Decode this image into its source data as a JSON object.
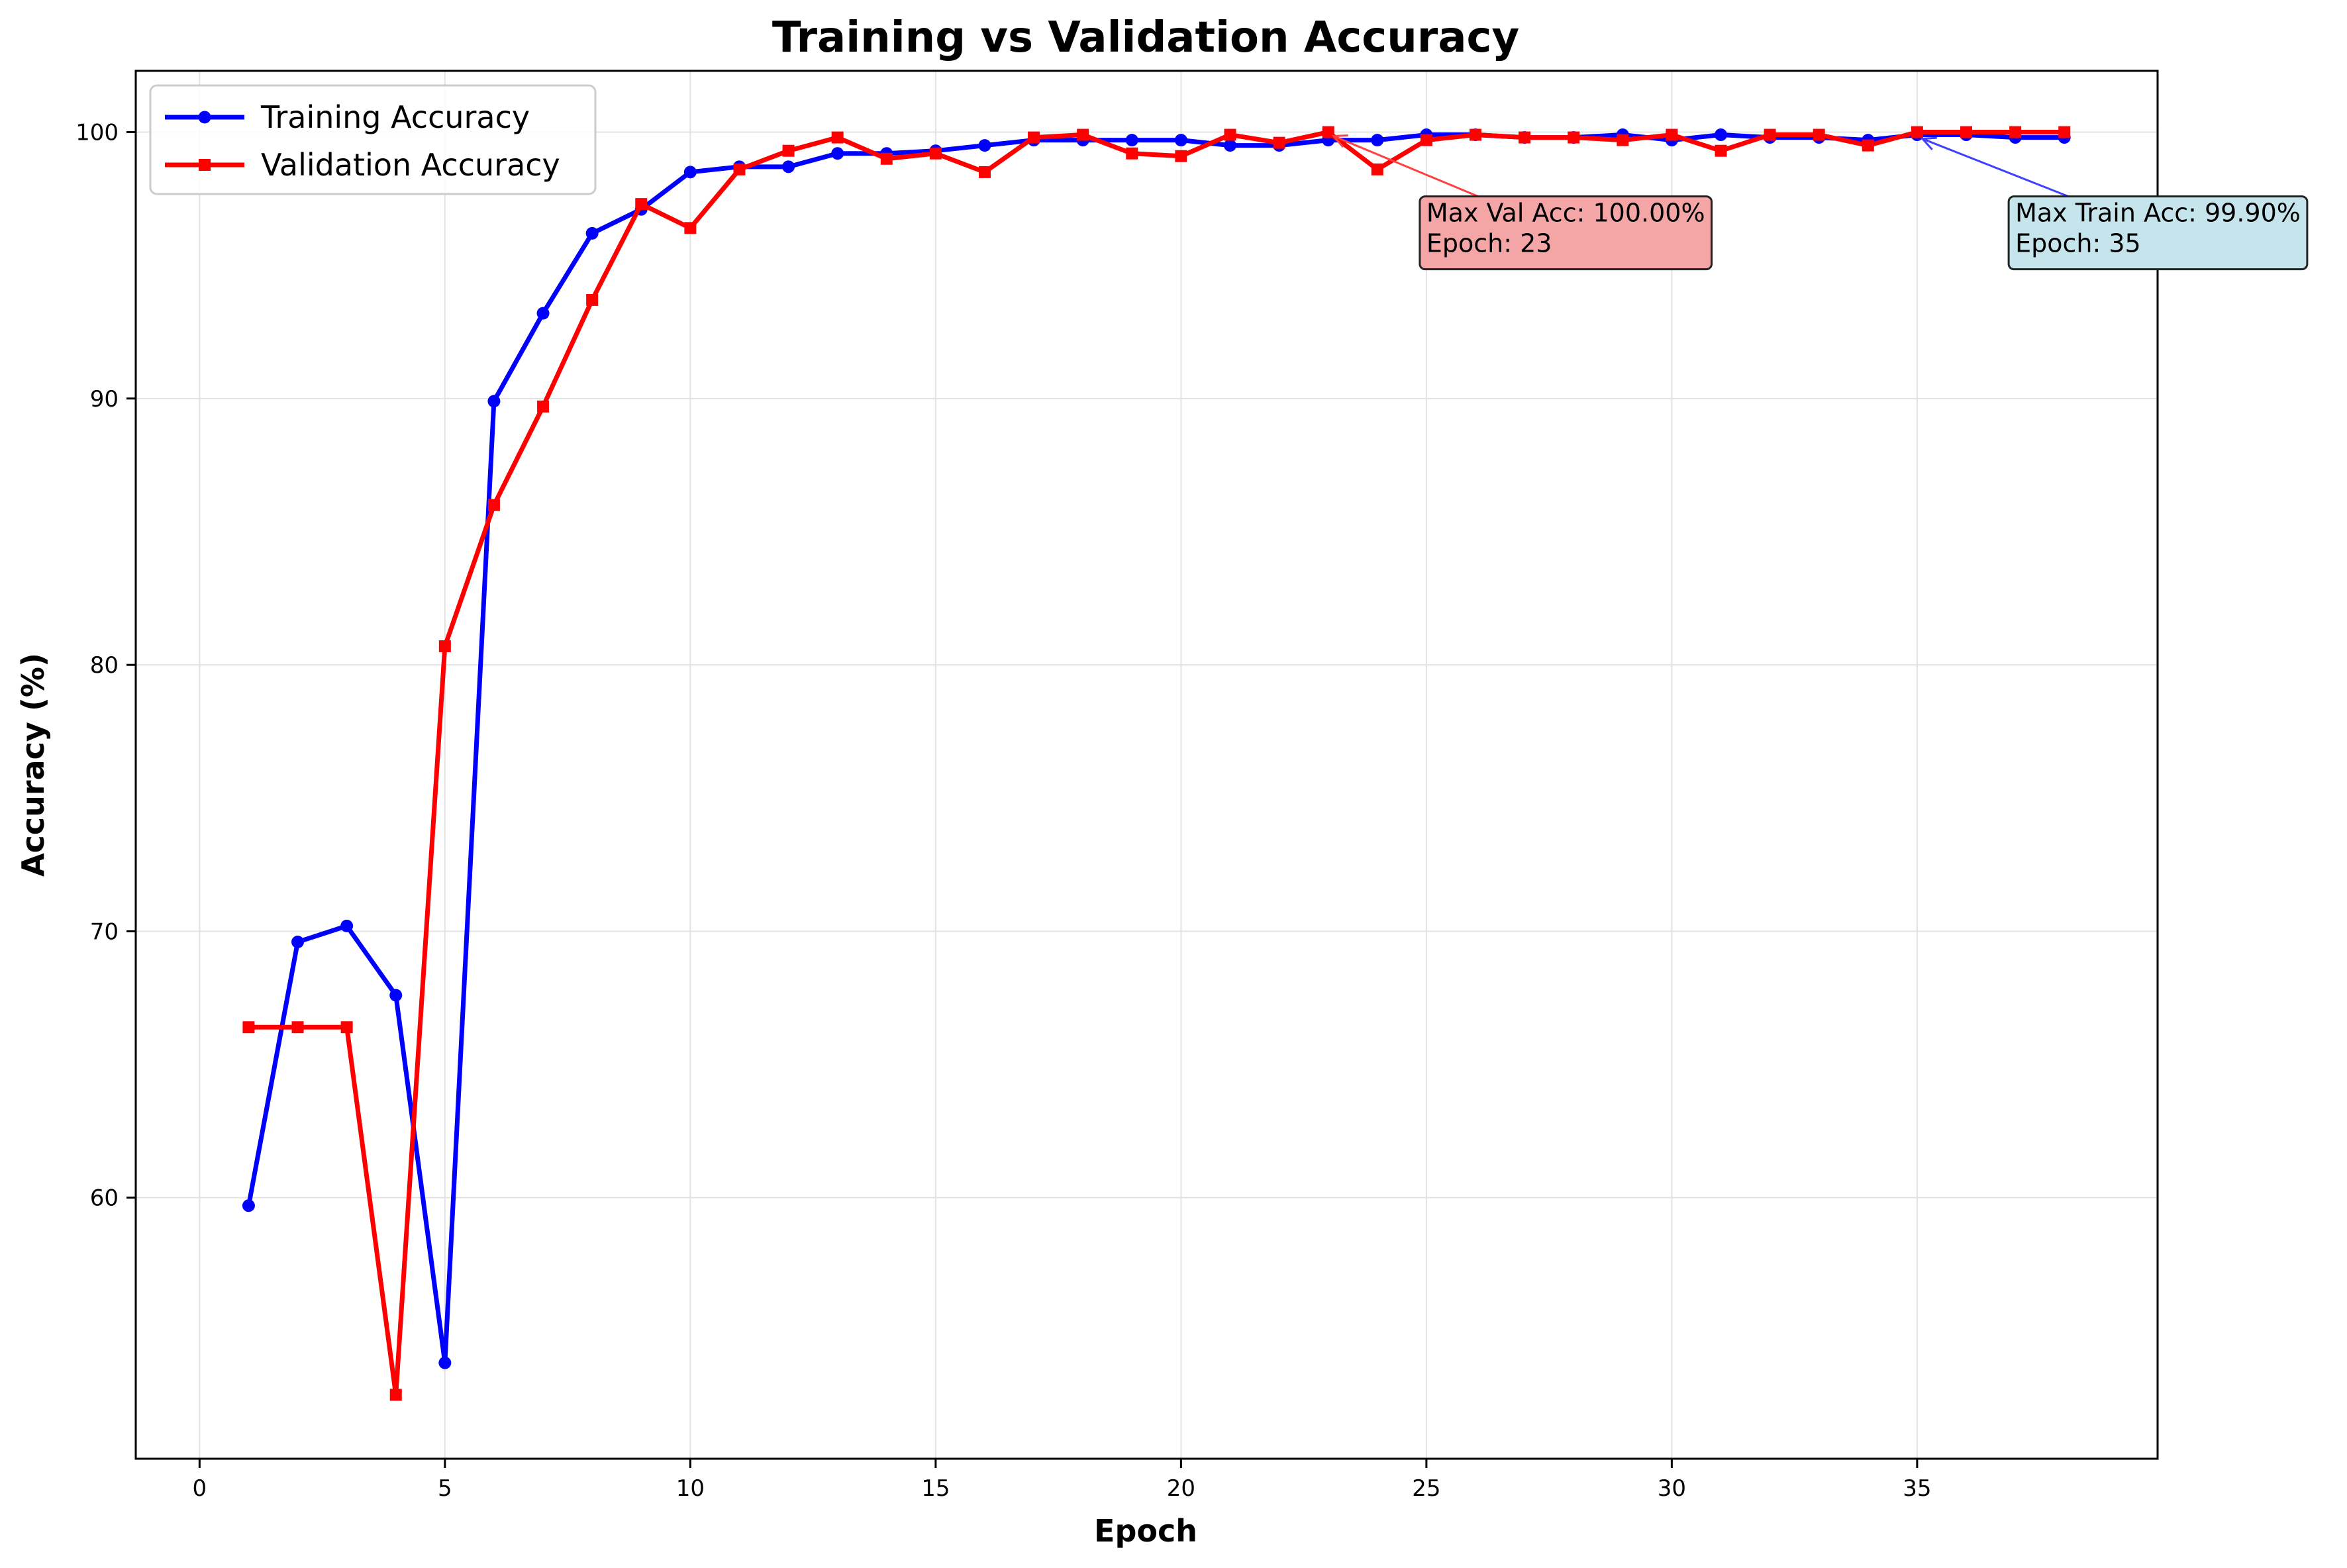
{
  "chart_data": {
    "type": "line",
    "title": "Training vs Validation Accuracy",
    "xlabel": "Epoch",
    "ylabel": "Accuracy (%)",
    "xlim": [
      -1.3,
      39.9
    ],
    "ylim": [
      50.2,
      102.3
    ],
    "xticks": [
      0,
      5,
      10,
      15,
      20,
      25,
      30,
      35
    ],
    "yticks": [
      60,
      70,
      80,
      90,
      100
    ],
    "grid": true,
    "legend_position": "upper-left",
    "x": [
      1,
      2,
      3,
      4,
      5,
      6,
      7,
      8,
      9,
      10,
      11,
      12,
      13,
      14,
      15,
      16,
      17,
      18,
      19,
      20,
      21,
      22,
      23,
      24,
      25,
      26,
      27,
      28,
      29,
      30,
      31,
      32,
      33,
      34,
      35,
      36,
      37,
      38
    ],
    "series": [
      {
        "name": "Training Accuracy",
        "color": "#0000ff",
        "marker": "circle",
        "values": [
          59.7,
          69.6,
          70.2,
          67.6,
          53.8,
          89.9,
          93.2,
          96.2,
          97.1,
          98.5,
          98.7,
          98.7,
          99.2,
          99.2,
          99.3,
          99.5,
          99.7,
          99.7,
          99.7,
          99.7,
          99.5,
          99.5,
          99.7,
          99.7,
          99.9,
          99.9,
          99.8,
          99.8,
          99.9,
          99.7,
          99.9,
          99.8,
          99.8,
          99.7,
          99.9,
          99.9,
          99.8,
          99.8
        ]
      },
      {
        "name": "Validation Accuracy",
        "color": "#ff0000",
        "marker": "square",
        "values": [
          66.4,
          66.4,
          66.4,
          52.6,
          80.7,
          86.0,
          89.7,
          93.7,
          97.3,
          96.4,
          98.6,
          99.3,
          99.8,
          99.0,
          99.2,
          98.5,
          99.8,
          99.9,
          99.2,
          99.1,
          99.9,
          99.6,
          100.0,
          98.6,
          99.7,
          99.9,
          99.8,
          99.8,
          99.7,
          99.9,
          99.3,
          99.9,
          99.9,
          99.5,
          100.0,
          100.0,
          100.0,
          100.0
        ]
      }
    ],
    "annotations": [
      {
        "line1": "Max Val Acc: 100.00%",
        "line2": "Epoch: 23",
        "point": [
          23,
          100.0
        ],
        "text_at": [
          25,
          95.3
        ],
        "box_color": "#f4a6a6",
        "arrow_color": "#ff4040"
      },
      {
        "line1": "Max Train Acc: 99.90%",
        "line2": "Epoch: 35",
        "point": [
          35,
          99.9
        ],
        "text_at": [
          37,
          95.3
        ],
        "box_color": "#c6e4ec",
        "arrow_color": "#4040ff"
      }
    ]
  }
}
